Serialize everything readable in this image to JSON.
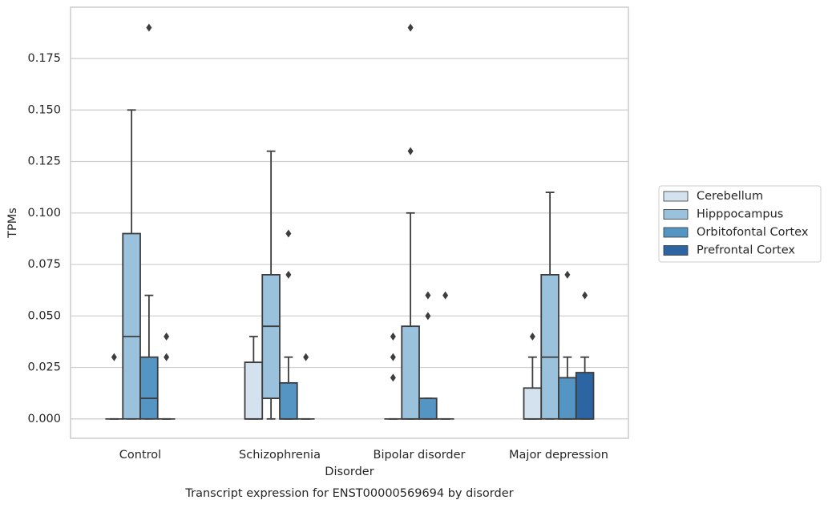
{
  "chart_data": {
    "type": "box",
    "title": "Transcript expression for ENST00000569694 by disorder",
    "xlabel": "Disorder",
    "ylabel": "TPMs",
    "categories": [
      "Control",
      "Schizophrenia",
      "Bipolar disorder",
      "Major depression"
    ],
    "ylim": [
      -0.0094,
      0.1999
    ],
    "yticks": [
      {
        "value": 0,
        "label": "0.000"
      },
      {
        "value": 0.025,
        "label": "0.025"
      },
      {
        "value": 0.05,
        "label": "0.050"
      },
      {
        "value": 0.075,
        "label": "0.075"
      },
      {
        "value": 0.1,
        "label": "0.100"
      },
      {
        "value": 0.125,
        "label": "0.125"
      },
      {
        "value": 0.15,
        "label": "0.150"
      },
      {
        "value": 0.175,
        "label": "0.175"
      }
    ],
    "grid": true,
    "legend": "right",
    "series": [
      {
        "name": "Cerebellum",
        "color": "#d4e2ef",
        "boxes": [
          {
            "whislo": 0,
            "q1": 0,
            "med": 0,
            "q3": 0,
            "whishi": 0,
            "fliers": [
              0.03
            ]
          },
          {
            "whislo": 0,
            "q1": 0,
            "med": 0,
            "q3": 0.0275,
            "whishi": 0.04,
            "fliers": []
          },
          {
            "whislo": 0,
            "q1": 0,
            "med": 0,
            "q3": 0,
            "whishi": 0,
            "fliers": [
              0.02,
              0.03,
              0.04
            ]
          },
          {
            "whislo": 0,
            "q1": 0,
            "med": 0,
            "q3": 0.015,
            "whishi": 0.03,
            "fliers": [
              0.04
            ]
          }
        ]
      },
      {
        "name": "Hipppocampus",
        "color": "#9ac2dc",
        "boxes": [
          {
            "whislo": 0,
            "q1": 0,
            "med": 0.04,
            "q3": 0.09,
            "whishi": 0.15,
            "fliers": []
          },
          {
            "whislo": 0,
            "q1": 0.01,
            "med": 0.045,
            "q3": 0.07,
            "whishi": 0.13,
            "fliers": []
          },
          {
            "whislo": 0,
            "q1": 0,
            "med": 0,
            "q3": 0.045,
            "whishi": 0.1,
            "fliers": [
              0.13,
              0.19
            ]
          },
          {
            "whislo": 0,
            "q1": 0,
            "med": 0.03,
            "q3": 0.07,
            "whishi": 0.11,
            "fliers": []
          }
        ]
      },
      {
        "name": "Orbitofontal Cortex",
        "color": "#5595c3",
        "boxes": [
          {
            "whislo": 0,
            "q1": 0,
            "med": 0.01,
            "q3": 0.03,
            "whishi": 0.06,
            "fliers": [
              0.19
            ]
          },
          {
            "whislo": 0,
            "q1": 0,
            "med": 0,
            "q3": 0.0175,
            "whishi": 0.03,
            "fliers": [
              0.07,
              0.09
            ]
          },
          {
            "whislo": 0,
            "q1": 0,
            "med": 0,
            "q3": 0.01,
            "whishi": 0.01,
            "fliers": [
              0.05,
              0.06
            ]
          },
          {
            "whislo": 0,
            "q1": 0,
            "med": 0,
            "q3": 0.02,
            "whishi": 0.03,
            "fliers": [
              0.07
            ]
          }
        ]
      },
      {
        "name": "Prefrontal Cortex",
        "color": "#2c65a2",
        "boxes": [
          {
            "whislo": 0,
            "q1": 0,
            "med": 0,
            "q3": 0,
            "whishi": 0,
            "fliers": [
              0.03,
              0.04
            ]
          },
          {
            "whislo": 0,
            "q1": 0,
            "med": 0,
            "q3": 0,
            "whishi": 0,
            "fliers": [
              0.03
            ]
          },
          {
            "whislo": 0,
            "q1": 0,
            "med": 0,
            "q3": 0,
            "whishi": 0,
            "fliers": [
              0.06
            ]
          },
          {
            "whislo": 0,
            "q1": 0,
            "med": 0,
            "q3": 0.0225,
            "whishi": 0.03,
            "fliers": [
              0.06
            ]
          }
        ]
      }
    ]
  }
}
